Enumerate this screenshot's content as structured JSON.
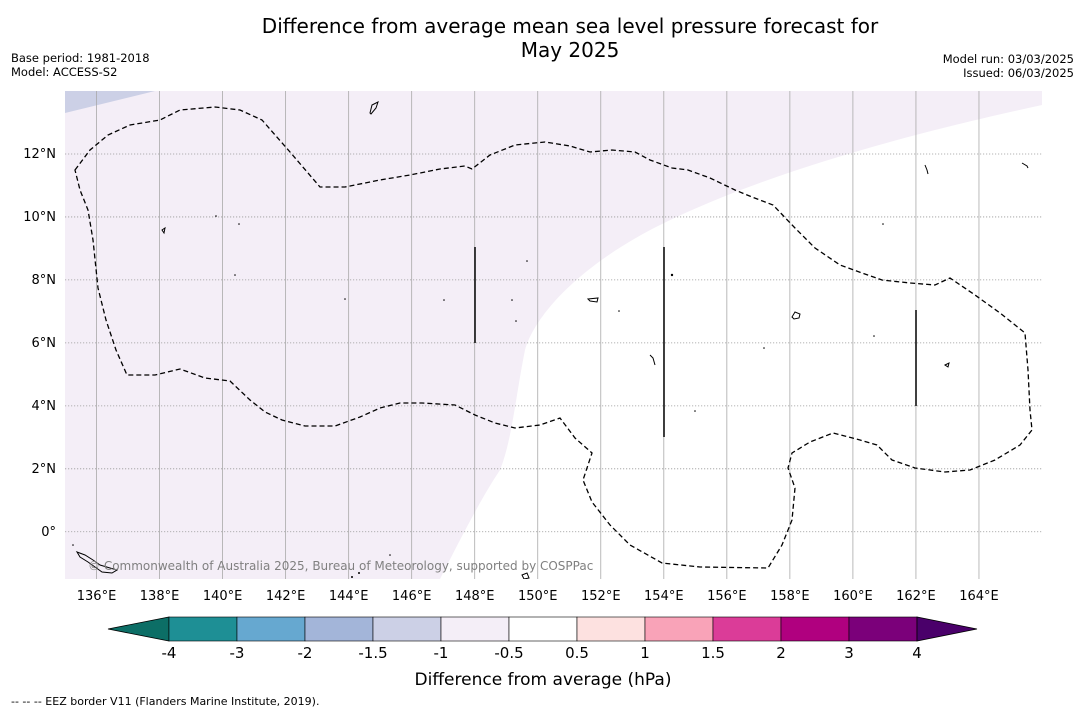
{
  "title_line1": "Difference from average mean sea level pressure forecast for",
  "title_line2": "May 2025",
  "base_period": "Base period: 1981-2018",
  "model": "Model: ACCESS-S2",
  "model_run": "Model run: 03/03/2025",
  "issued": "Issued: 06/03/2025",
  "copyright": "© Commonwealth of Australia 2025, Bureau of Meteorology, supported by COSPPac",
  "footnote": "-- -- -- EEZ border V11 (Flanders Marine Institute, 2019).",
  "map": {
    "lon_range": [
      135,
      166
    ],
    "lat_range": [
      -1.5,
      14
    ],
    "lon_ticks": [
      "136°E",
      "138°E",
      "140°E",
      "142°E",
      "144°E",
      "146°E",
      "148°E",
      "150°E",
      "152°E",
      "154°E",
      "156°E",
      "158°E",
      "160°E",
      "162°E",
      "164°E"
    ],
    "lat_ticks": [
      "0°",
      "2°N",
      "4°N",
      "6°N",
      "8°N",
      "10°N",
      "12°N"
    ],
    "lon_tick_values": [
      136,
      138,
      140,
      142,
      144,
      146,
      148,
      150,
      152,
      154,
      156,
      158,
      160,
      162,
      164
    ],
    "lat_tick_values": [
      0,
      2,
      4,
      6,
      8,
      10,
      12
    ],
    "grid": true
  },
  "colorbar": {
    "label": "Difference from average (hPa)",
    "tick_labels": [
      "-4",
      "-3",
      "-2",
      "-1.5",
      "-1",
      "-0.5",
      "0.5",
      "1",
      "1.5",
      "2",
      "3",
      "4"
    ],
    "colors": [
      "#1e8f95",
      "#66a8d0",
      "#a3b5d9",
      "#ccd0e6",
      "#f4eef7",
      "#ffffff",
      "#fde1e0",
      "#f9a3b8",
      "#db3c98",
      "#b0007f",
      "#7b007a"
    ],
    "under_color": "#0c6e66",
    "over_color": "#4a006a"
  },
  "fill_colors": {
    "light_purple": "#f4eef7",
    "lavender": "#ccd0e6"
  }
}
